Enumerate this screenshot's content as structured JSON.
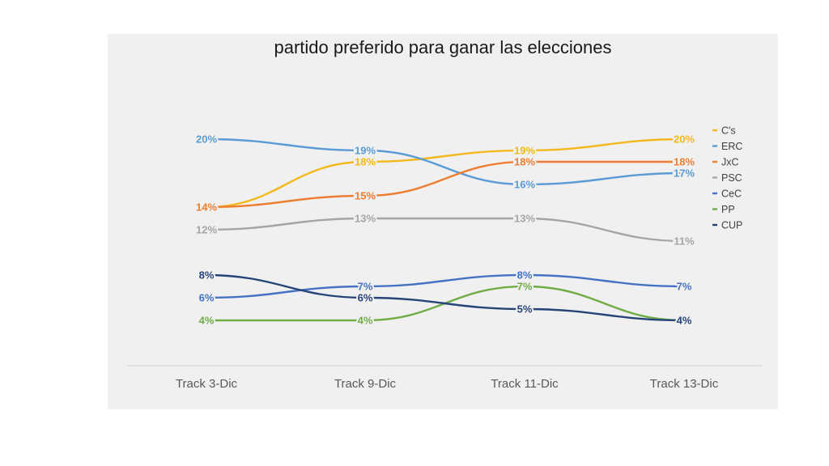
{
  "chart_data": {
    "type": "line",
    "title": "partido preferido para ganar las elecciones",
    "categories": [
      "Track 3-Dic",
      "Track 9-Dic",
      "Track 11-Dic",
      "Track 13-Dic"
    ],
    "ylim": [
      0,
      26
    ],
    "legend_position": "right",
    "series": [
      {
        "name": "C's",
        "color": "#f5b81c",
        "values": [
          14,
          18,
          19,
          20
        ],
        "labels": [
          "",
          "18%",
          "19%",
          "20%"
        ]
      },
      {
        "name": "ERC",
        "color": "#5b9bd5",
        "values": [
          20,
          19,
          16,
          17
        ],
        "labels": [
          "20%",
          "19%",
          "16%",
          "17%"
        ]
      },
      {
        "name": "JxC",
        "color": "#ed7d31",
        "values": [
          14,
          15,
          18,
          18
        ],
        "labels": [
          "14%",
          "15%",
          "18%",
          "18%"
        ]
      },
      {
        "name": "PSC",
        "color": "#a5a5a5",
        "values": [
          12,
          13,
          13,
          11
        ],
        "labels": [
          "12%",
          "13%",
          "13%",
          "11%"
        ]
      },
      {
        "name": "CeC",
        "color": "#4472c4",
        "values": [
          6,
          7,
          8,
          7
        ],
        "labels": [
          "6%",
          "7%",
          "8%",
          "7%"
        ]
      },
      {
        "name": "PP",
        "color": "#70ad47",
        "values": [
          4,
          4,
          7,
          4
        ],
        "labels": [
          "4%",
          "4%",
          "7%",
          ""
        ]
      },
      {
        "name": "CUP",
        "color": "#264478",
        "values": [
          8,
          6,
          5,
          4
        ],
        "labels": [
          "8%",
          "6%",
          "5%",
          "4%"
        ]
      }
    ]
  }
}
